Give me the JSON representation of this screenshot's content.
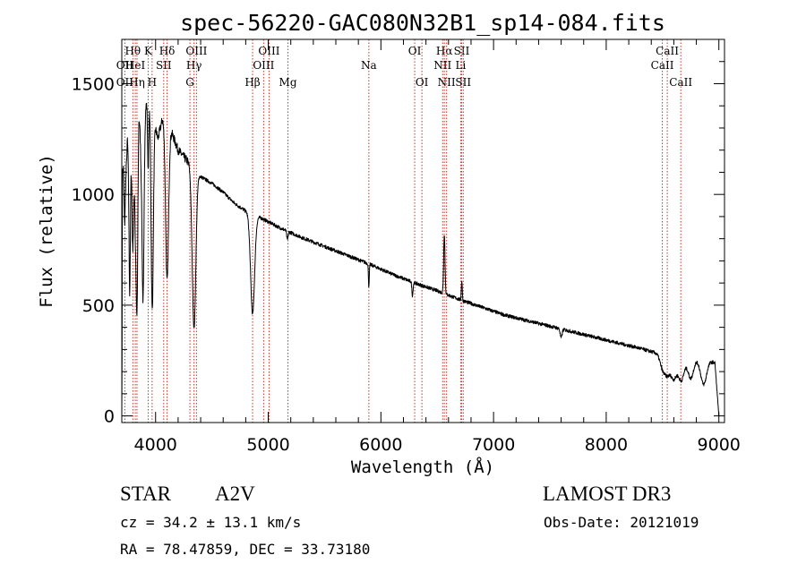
{
  "chart_data": {
    "type": "line",
    "title": "spec-56220-GAC080N32B1_sp14-084.fits",
    "xlabel": "Wavelength (Å)",
    "ylabel": "Flux (relative)",
    "xlim": [
      3700,
      9050
    ],
    "ylim": [
      -30,
      1700
    ],
    "xticks": [
      4000,
      5000,
      6000,
      7000,
      8000,
      9000
    ],
    "yticks": [
      0,
      500,
      1000,
      1500
    ],
    "xtick_labels": [
      "4000",
      "5000",
      "6000",
      "7000",
      "8000",
      "9000"
    ],
    "ytick_labels": [
      "0",
      "500",
      "1000",
      "1500"
    ],
    "continuum": [
      [
        3700,
        30
      ],
      [
        3702,
        260
      ],
      [
        3705,
        1100
      ],
      [
        3715,
        1120
      ],
      [
        3725,
        850
      ],
      [
        3735,
        1050
      ],
      [
        3750,
        1250
      ],
      [
        3770,
        1050
      ],
      [
        3800,
        1380
      ],
      [
        3820,
        900
      ],
      [
        3850,
        1420
      ],
      [
        3870,
        1200
      ],
      [
        3900,
        1400
      ],
      [
        3950,
        1430
      ],
      [
        4000,
        1300
      ],
      [
        4020,
        1250
      ],
      [
        4060,
        1340
      ],
      [
        4150,
        1270
      ],
      [
        4200,
        1200
      ],
      [
        4300,
        1140
      ],
      [
        4400,
        1080
      ],
      [
        4500,
        1050
      ],
      [
        4600,
        1010
      ],
      [
        4700,
        960
      ],
      [
        4800,
        925
      ],
      [
        4950,
        890
      ],
      [
        5100,
        850
      ],
      [
        5300,
        805
      ],
      [
        5500,
        765
      ],
      [
        5700,
        725
      ],
      [
        5900,
        685
      ],
      [
        6100,
        640
      ],
      [
        6300,
        600
      ],
      [
        6500,
        565
      ],
      [
        6700,
        525
      ],
      [
        6900,
        490
      ],
      [
        7100,
        455
      ],
      [
        7300,
        430
      ],
      [
        7500,
        405
      ],
      [
        7700,
        380
      ],
      [
        7900,
        355
      ],
      [
        8100,
        330
      ],
      [
        8300,
        305
      ],
      [
        8400,
        290
      ],
      [
        8500,
        275
      ],
      [
        8600,
        265
      ],
      [
        8750,
        255
      ],
      [
        8900,
        252
      ],
      [
        8960,
        240
      ]
    ],
    "absorptions": [
      {
        "center": 3770,
        "width": 6,
        "depth": 500
      },
      {
        "center": 3798,
        "width": 7,
        "depth": 600
      },
      {
        "center": 3835,
        "width": 8,
        "depth": 700
      },
      {
        "center": 3889,
        "width": 9,
        "depth": 800
      },
      {
        "center": 3934,
        "width": 5,
        "depth": 300
      },
      {
        "center": 3970,
        "width": 10,
        "depth": 900
      },
      {
        "center": 4102,
        "width": 13,
        "depth": 700
      },
      {
        "center": 4341,
        "width": 16,
        "depth": 720
      },
      {
        "center": 4861,
        "width": 18,
        "depth": 450
      },
      {
        "center": 5170,
        "width": 6,
        "depth": 40
      },
      {
        "center": 5893,
        "width": 4,
        "depth": 100
      },
      {
        "center": 6280,
        "width": 5,
        "depth": 60
      },
      {
        "center": 7600,
        "width": 8,
        "depth": 40
      },
      {
        "center": 8498,
        "width": 22,
        "depth": 50
      },
      {
        "center": 8542,
        "width": 26,
        "depth": 80
      },
      {
        "center": 8600,
        "width": 24,
        "depth": 90
      },
      {
        "center": 8665,
        "width": 26,
        "depth": 100
      },
      {
        "center": 8750,
        "width": 24,
        "depth": 85
      },
      {
        "center": 8865,
        "width": 26,
        "depth": 110
      }
    ],
    "emissions": [
      {
        "center": 6563,
        "width": 6,
        "height": 270
      },
      {
        "center": 6718,
        "width": 4,
        "height": 90
      }
    ],
    "dropoff": {
      "start": 8965,
      "end": 9000,
      "to": 0
    },
    "line_markers": [
      {
        "label": "Hθ",
        "wavelength": 3798,
        "row": 1
      },
      {
        "label": "OII",
        "wavelength": 3727,
        "row": 2
      },
      {
        "label": "OII",
        "wavelength": 3727,
        "row": 3
      },
      {
        "label": "HeI",
        "wavelength": 3820,
        "row": 2
      },
      {
        "label": "Hη",
        "wavelength": 3835,
        "row": 3
      },
      {
        "label": "K",
        "wavelength": 3934,
        "row": 1
      },
      {
        "label": "SII",
        "wavelength": 4072,
        "row": 2
      },
      {
        "label": "H",
        "wavelength": 3969,
        "row": 3
      },
      {
        "label": "Hδ",
        "wavelength": 4102,
        "row": 1
      },
      {
        "label": "OIII",
        "wavelength": 4363,
        "row": 1
      },
      {
        "label": "Hγ",
        "wavelength": 4341,
        "row": 2
      },
      {
        "label": "G",
        "wavelength": 4305,
        "row": 3
      },
      {
        "label": "Hβ",
        "wavelength": 4861,
        "row": 3
      },
      {
        "label": "OIII",
        "wavelength": 5007,
        "row": 1
      },
      {
        "label": "OIII",
        "wavelength": 4959,
        "row": 2
      },
      {
        "label": "Mg",
        "wavelength": 5175,
        "row": 3
      },
      {
        "label": "Na",
        "wavelength": 5893,
        "row": 2
      },
      {
        "label": "OI",
        "wavelength": 6300,
        "row": 1
      },
      {
        "label": "OI",
        "wavelength": 6364,
        "row": 3
      },
      {
        "label": "Hα",
        "wavelength": 6563,
        "row": 1
      },
      {
        "label": "NII",
        "wavelength": 6548,
        "row": 2
      },
      {
        "label": "NII",
        "wavelength": 6583,
        "row": 3
      },
      {
        "label": "SII",
        "wavelength": 6717,
        "row": 1
      },
      {
        "label": "Li",
        "wavelength": 6708,
        "row": 2
      },
      {
        "label": "SII",
        "wavelength": 6731,
        "row": 3
      },
      {
        "label": "CaII",
        "wavelength": 8542,
        "row": 1
      },
      {
        "label": "CaII",
        "wavelength": 8498,
        "row": 2
      },
      {
        "label": "CaII",
        "wavelength": 8662,
        "row": 3
      }
    ]
  },
  "info": {
    "object_class": "STAR",
    "subclass": "A2V",
    "survey": "LAMOST DR3",
    "redshift": "cz = 34.2 ± 13.1 km/s",
    "obs_date": "Obs-Date: 20121019",
    "coords": "RA =  78.47859, DEC =  33.73180"
  },
  "colors": {
    "marker": "#c0392b",
    "spectrum": "#000000"
  }
}
